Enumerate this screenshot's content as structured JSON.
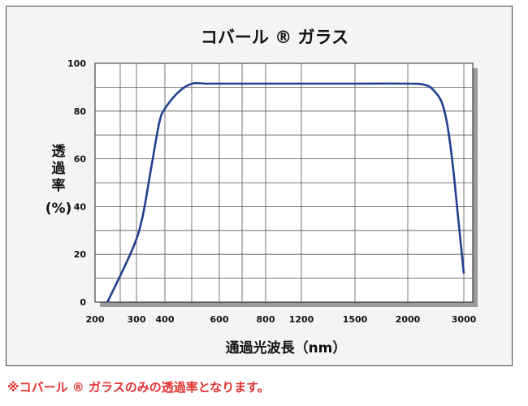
{
  "chart_data": {
    "type": "line",
    "title": "コバール ® ガラス",
    "xlabel": "通過光波長（nm）",
    "ylabel_lines": [
      "透",
      "過",
      "率",
      "(%)"
    ],
    "x_ticks": [
      "200",
      "300",
      "400",
      "600",
      "800",
      "1200",
      "1500",
      "2000",
      "3000"
    ],
    "y_ticks": [
      "0",
      "20",
      "40",
      "60",
      "80",
      "100"
    ],
    "ylim": [
      0,
      100
    ],
    "grid": true,
    "line_color": "#1f3f8f",
    "series": [
      {
        "x": [
          230,
          290,
          320,
          350,
          380,
          400,
          450,
          500,
          550,
          600,
          800,
          1200,
          1500,
          2000,
          2300,
          2450,
          2600,
          2700,
          2800,
          2900,
          3000
        ],
        "values": [
          0,
          22,
          35,
          55,
          75,
          81,
          88,
          91.5,
          91.5,
          91.5,
          91.5,
          91.5,
          91.5,
          91.5,
          91,
          89,
          84,
          75,
          58,
          35,
          12
        ]
      }
    ]
  },
  "footnote": "※コバール ® ガラスのみの透過率となります。"
}
